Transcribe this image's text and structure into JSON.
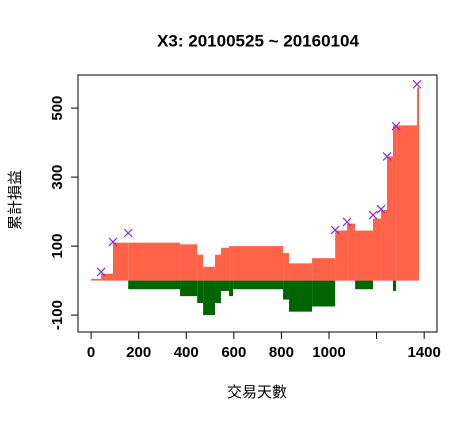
{
  "chart_data": {
    "type": "step",
    "title": "X3: 20100525 ~ 20160104",
    "x_label": "交易天數",
    "y_label": "累計損益",
    "x": [
      0,
      42,
      92,
      156,
      374,
      446,
      471,
      521,
      546,
      580,
      597,
      807,
      832,
      929,
      1026,
      1076,
      1110,
      1185,
      1219,
      1244,
      1269,
      1282,
      1370
    ],
    "series": [
      {
        "color": "#ff6347",
        "values": [
          5,
          20,
          110,
          110,
          105,
          75,
          40,
          75,
          95,
          100,
          100,
          80,
          50,
          65,
          145,
          165,
          145,
          180,
          205,
          360,
          450,
          450,
          560
        ]
      },
      {
        "color": "#006400",
        "values": [
          0,
          0,
          0,
          -25,
          -45,
          -65,
          -100,
          -65,
          -30,
          -45,
          -25,
          -55,
          -90,
          -75,
          0,
          0,
          -25,
          0,
          0,
          0,
          -30,
          0,
          0
        ]
      }
    ],
    "markers": {
      "color": "#8a2be2",
      "x": [
        42,
        92,
        156,
        1026,
        1076,
        1185,
        1219,
        1244,
        1282,
        1370
      ],
      "values": [
        25,
        112,
        138,
        147,
        170,
        190,
        207,
        360,
        448,
        569
      ]
    },
    "xlim": [
      -55,
      1454
    ],
    "ylim": [
      -149,
      596
    ],
    "xticks": [
      0,
      200,
      400,
      600,
      800,
      1000,
      {
        "value": 1200,
        "label": null
      },
      1400
    ],
    "yticks": [
      -100,
      100,
      300,
      500
    ]
  }
}
